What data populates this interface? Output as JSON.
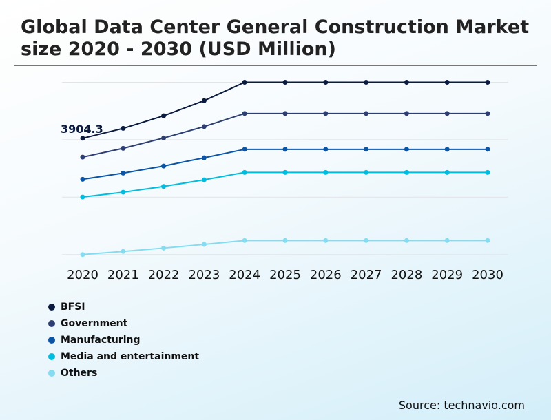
{
  "chart_data": {
    "type": "line",
    "title": "Global Data Center General Construction Market size 2020 - 2030 (USD Million)",
    "x": [
      "2020",
      "2021",
      "2022",
      "2023",
      "2024",
      "2025",
      "2026",
      "2027",
      "2028",
      "2029",
      "2030"
    ],
    "ylim": [
      0,
      5784
    ],
    "grid": true,
    "legend_position": "bottom-left",
    "series": [
      {
        "name": "BFSI",
        "color": "#0b1a3f",
        "values": [
          3904.3,
          4237,
          4659,
          5167,
          5784,
          5784,
          5784,
          5784,
          5784,
          5784,
          5784
        ]
      },
      {
        "name": "Government",
        "color": "#2d3e73",
        "values": [
          3273,
          3567,
          3913,
          4297,
          4736,
          4736,
          4736,
          4736,
          4736,
          4736,
          4736
        ]
      },
      {
        "name": "Manufacturing",
        "color": "#0a55a5",
        "values": [
          2527,
          2735,
          2973,
          3250,
          3534,
          3534,
          3534,
          3534,
          3534,
          3534,
          3534
        ]
      },
      {
        "name": "Media and entertainment",
        "color": "#00bde0",
        "values": [
          1933,
          2095,
          2287,
          2511,
          2758,
          2758,
          2758,
          2758,
          2758,
          2758,
          2758
        ]
      },
      {
        "name": "Others",
        "color": "#85dcf0",
        "values": [
          0,
          102,
          217,
          339,
          471,
          471,
          471,
          471,
          471,
          471,
          471
        ]
      }
    ],
    "annotations": [
      {
        "series": "BFSI",
        "x": "2020",
        "label": "3904.3"
      }
    ]
  },
  "source": "Source: technavio.com"
}
